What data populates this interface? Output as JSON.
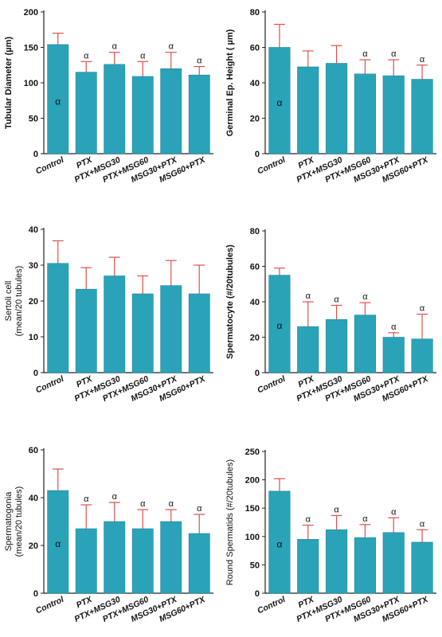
{
  "colors": {
    "bar": "#2aa3b9",
    "bar_edge": "#1d8799",
    "error": "#e0504a",
    "axis": "#222222",
    "text": "#111111"
  },
  "categories": [
    "Control",
    "PTX",
    "PTX+MSG30",
    "PTX+MSG60",
    "MSG30+PTX",
    "MSG60+PTX"
  ],
  "chart_data": [
    {
      "type": "bar",
      "ylabel": "Tubular Diameter  (µm)",
      "ylabel_bold": true,
      "categories": [
        "Control",
        "PTX",
        "PTX+MSG30",
        "PTX+MSG60",
        "MSG30+PTX",
        "MSG60+PTX"
      ],
      "values": [
        154,
        115,
        126,
        109,
        120,
        111
      ],
      "errors": [
        16,
        15,
        17,
        21,
        23,
        12
      ],
      "ylim": [
        0,
        200
      ],
      "yticks": [
        0,
        50,
        100,
        150,
        200
      ],
      "annotations": [
        "α",
        "α",
        "α",
        "α",
        "α",
        "α"
      ],
      "annotation_inside": [
        true,
        false,
        false,
        false,
        false,
        false
      ]
    },
    {
      "type": "bar",
      "ylabel": "Germinal Ep. Height ( µm)",
      "ylabel_bold": true,
      "categories": [
        "Control",
        "PTX",
        "PTX+MSG30",
        "PTX+MSG60",
        "MSG30+PTX",
        "MSG60+PTX"
      ],
      "values": [
        60,
        49,
        51,
        45,
        44,
        42
      ],
      "errors": [
        13,
        9,
        10,
        8,
        9,
        8
      ],
      "ylim": [
        0,
        80
      ],
      "yticks": [
        0,
        20,
        40,
        60,
        80
      ],
      "annotations": [
        "α",
        "",
        "",
        "α",
        "α",
        "α"
      ],
      "annotation_inside": [
        true,
        false,
        false,
        false,
        false,
        false
      ]
    },
    {
      "type": "bar",
      "ylabel": "Sertoli cell\n(mean/20 tubules)",
      "ylabel_bold": false,
      "categories": [
        "Control",
        "PTX",
        "PTX+MSG30",
        "PTX+MSG60",
        "MSG30+PTX",
        "MSG60+PTX"
      ],
      "values": [
        30.5,
        23.3,
        27,
        22,
        24.3,
        22
      ],
      "errors": [
        6.3,
        6,
        5.2,
        5,
        7,
        8
      ],
      "ylim": [
        0,
        40
      ],
      "yticks": [
        0,
        10,
        20,
        30,
        40
      ],
      "annotations": [
        "",
        "",
        "",
        "",
        "",
        ""
      ],
      "annotation_inside": [
        false,
        false,
        false,
        false,
        false,
        false
      ]
    },
    {
      "type": "bar",
      "ylabel": "Spermatocyte (#/20tubules)",
      "ylabel_bold": true,
      "categories": [
        "Control",
        "PTX",
        "PTX+MSG30",
        "PTX+MSG60",
        "MSG30+PTX",
        "MSG60+PTX"
      ],
      "values": [
        55,
        26,
        30,
        32.5,
        20,
        19
      ],
      "errors": [
        4,
        14,
        8,
        7,
        2.5,
        14
      ],
      "ylim": [
        0,
        80
      ],
      "yticks": [
        0,
        20,
        40,
        60,
        80
      ],
      "annotations": [
        "α",
        "α",
        "α",
        "α",
        "α",
        "α"
      ],
      "annotation_inside": [
        true,
        false,
        false,
        false,
        false,
        false
      ]
    },
    {
      "type": "bar",
      "ylabel": "Spermatogonia\n(mean/20 tubules)",
      "ylabel_bold": false,
      "categories": [
        "Control",
        "PTX",
        "PTX+MSG30",
        "PTX+MSG60",
        "MSG30+PTX",
        "MSG60+PTX"
      ],
      "values": [
        43,
        27,
        30,
        27,
        30,
        25
      ],
      "errors": [
        9,
        10,
        8,
        8,
        5,
        8
      ],
      "ylim": [
        0,
        60
      ],
      "yticks": [
        0,
        20,
        40,
        60
      ],
      "annotations": [
        "α",
        "α",
        "α",
        "α",
        "α",
        "α"
      ],
      "annotation_inside": [
        true,
        false,
        false,
        false,
        false,
        false
      ]
    },
    {
      "type": "bar",
      "ylabel": "Round Spermatids (#/20tubules)",
      "ylabel_bold": false,
      "categories": [
        "Control",
        "PTX",
        "PTX+MSG30",
        "PTX+MSG60",
        "MSG30+PTX",
        "MSG60+PTX"
      ],
      "values": [
        180,
        95,
        112,
        98,
        107,
        90
      ],
      "errors": [
        22,
        25,
        25,
        23,
        26,
        22
      ],
      "ylim": [
        0,
        250
      ],
      "yticks": [
        0,
        50,
        100,
        150,
        200,
        250
      ],
      "annotations": [
        "α",
        "α",
        "α",
        "α",
        "α",
        "α"
      ],
      "annotation_inside": [
        true,
        false,
        false,
        false,
        false,
        false
      ]
    }
  ]
}
